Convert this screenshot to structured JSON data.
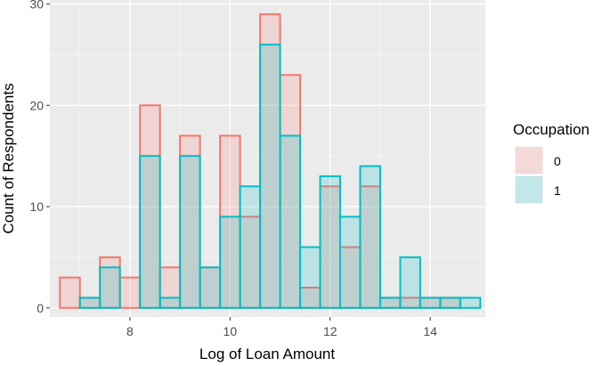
{
  "chart_data": {
    "type": "bar",
    "subtype": "overlaid-histogram",
    "xlabel": "Log of Loan Amount",
    "ylabel": "Count of Respondents",
    "xlim": [
      6.4,
      15.1
    ],
    "ylim": [
      -0.9,
      30.4
    ],
    "x_ticks": [
      8,
      10,
      12,
      14
    ],
    "y_ticks": [
      0,
      10,
      20,
      30
    ],
    "grid": true,
    "legend_position": "right",
    "legend_title": "Occupation",
    "bin_edges": [
      6.6,
      7.0,
      7.4,
      7.8,
      8.2,
      8.6,
      9.0,
      9.4,
      9.8,
      10.2,
      10.6,
      11.0,
      11.4,
      11.8,
      12.2,
      12.6,
      13.0,
      13.4,
      13.8,
      14.2,
      14.6,
      15.0
    ],
    "series": [
      {
        "name": "0",
        "fill": "#F8766D",
        "stroke": "#F8766D",
        "values": [
          3,
          1,
          5,
          3,
          20,
          4,
          17,
          4,
          17,
          9,
          29,
          23,
          2,
          12,
          6,
          12,
          1,
          1,
          1,
          1,
          0
        ]
      },
      {
        "name": "1",
        "fill": "#00BFC4",
        "stroke": "#00BFC4",
        "values": [
          0,
          1,
          4,
          0,
          15,
          1,
          15,
          4,
          9,
          12,
          26,
          17,
          6,
          13,
          9,
          14,
          1,
          5,
          1,
          1,
          1
        ]
      }
    ]
  }
}
